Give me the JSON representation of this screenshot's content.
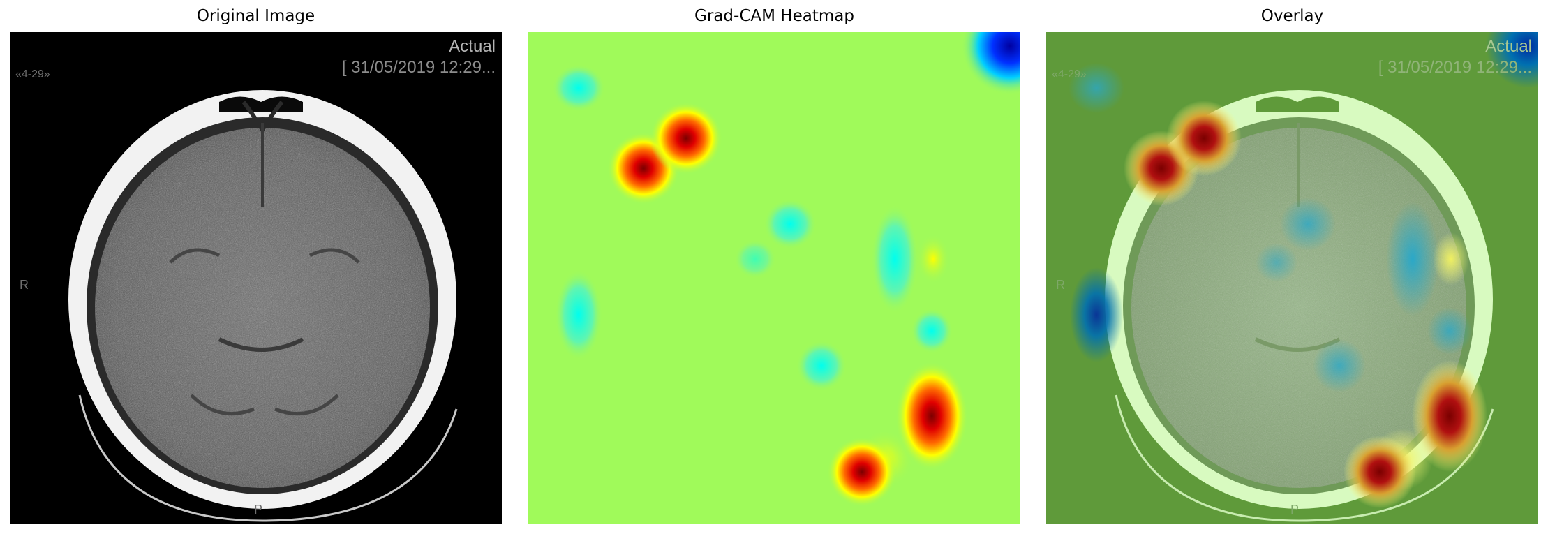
{
  "panels": [
    {
      "id": "original",
      "title": "Original Image"
    },
    {
      "id": "heatmap",
      "title": "Grad-CAM Heatmap"
    },
    {
      "id": "overlay",
      "title": "Overlay"
    }
  ],
  "ct_overlay_text": {
    "corner_label": "Actual",
    "timestamp": "[ 31/05/2019 12:29...",
    "slice_marker": "«4-29»",
    "left_marker": "R",
    "bottom_marker": "P"
  },
  "colors": {
    "background": "#ffffff",
    "ct_background": "#000000",
    "heatmap_base": "#a0fa5a",
    "overlay_base": "#5f9a3a",
    "hot_core": "#8b0000",
    "hot_mid": "#ff2a00",
    "hot_edge": "#ffff00",
    "cold_core": "#0000c8",
    "cold_mid": "#00ffff"
  }
}
